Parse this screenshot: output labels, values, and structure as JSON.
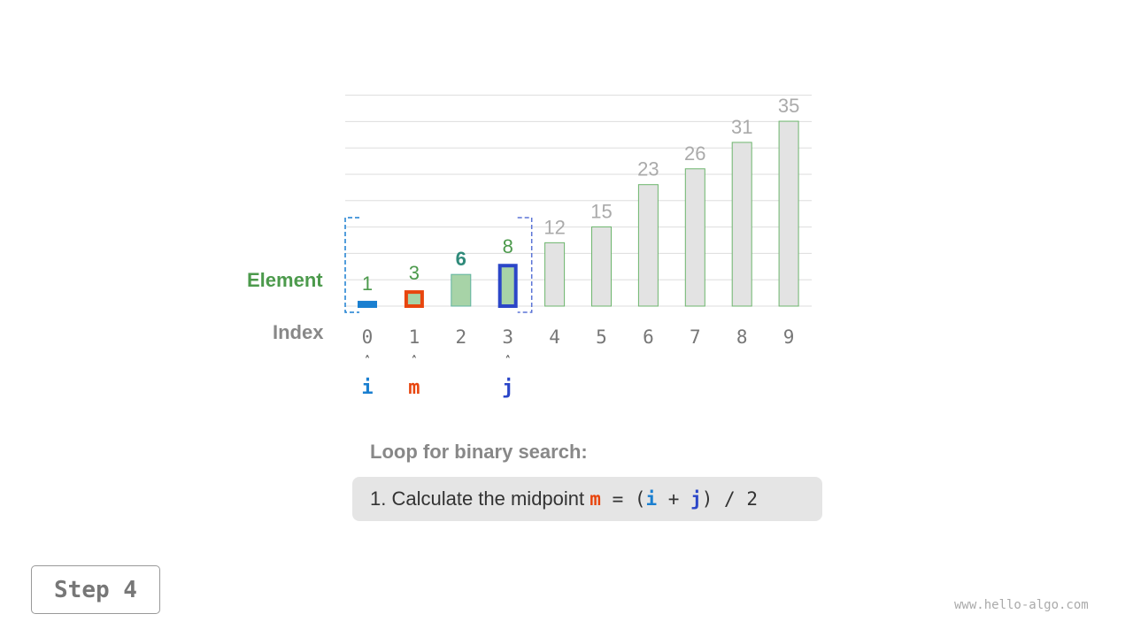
{
  "labels": {
    "element": "Element",
    "index": "Index"
  },
  "array": {
    "values": [
      1,
      3,
      6,
      8,
      12,
      15,
      23,
      26,
      31,
      35
    ],
    "indices": [
      "0",
      "1",
      "2",
      "3",
      "4",
      "5",
      "6",
      "7",
      "8",
      "9"
    ],
    "active_range": [
      0,
      3
    ]
  },
  "pointers": [
    {
      "name": "i",
      "index": 0,
      "color": "#1a7fd0"
    },
    {
      "name": "m",
      "index": 1,
      "color": "#e8450e"
    },
    {
      "name": "j",
      "index": 3,
      "color": "#2b46c8"
    }
  ],
  "colors": {
    "active_fill": "#a7d3a7",
    "inactive_fill": "#e3e3e3",
    "bar_stroke": "#6db56d",
    "i_color": "#1a7fd0",
    "m_color": "#e8450e",
    "j_color": "#2b46c8",
    "label_green": "#4c9a4c",
    "value_gray": "#aaa",
    "checked_value": "#2f8a7a"
  },
  "description": {
    "title": "Loop for binary search:",
    "step_text": "1. Calculate the midpoint ",
    "eq": " = (",
    "plus": " + ",
    "tail": ") / 2",
    "m": "m",
    "i": "i",
    "j": "j"
  },
  "step_button": "Step 4",
  "watermark": "www.hello-algo.com"
}
